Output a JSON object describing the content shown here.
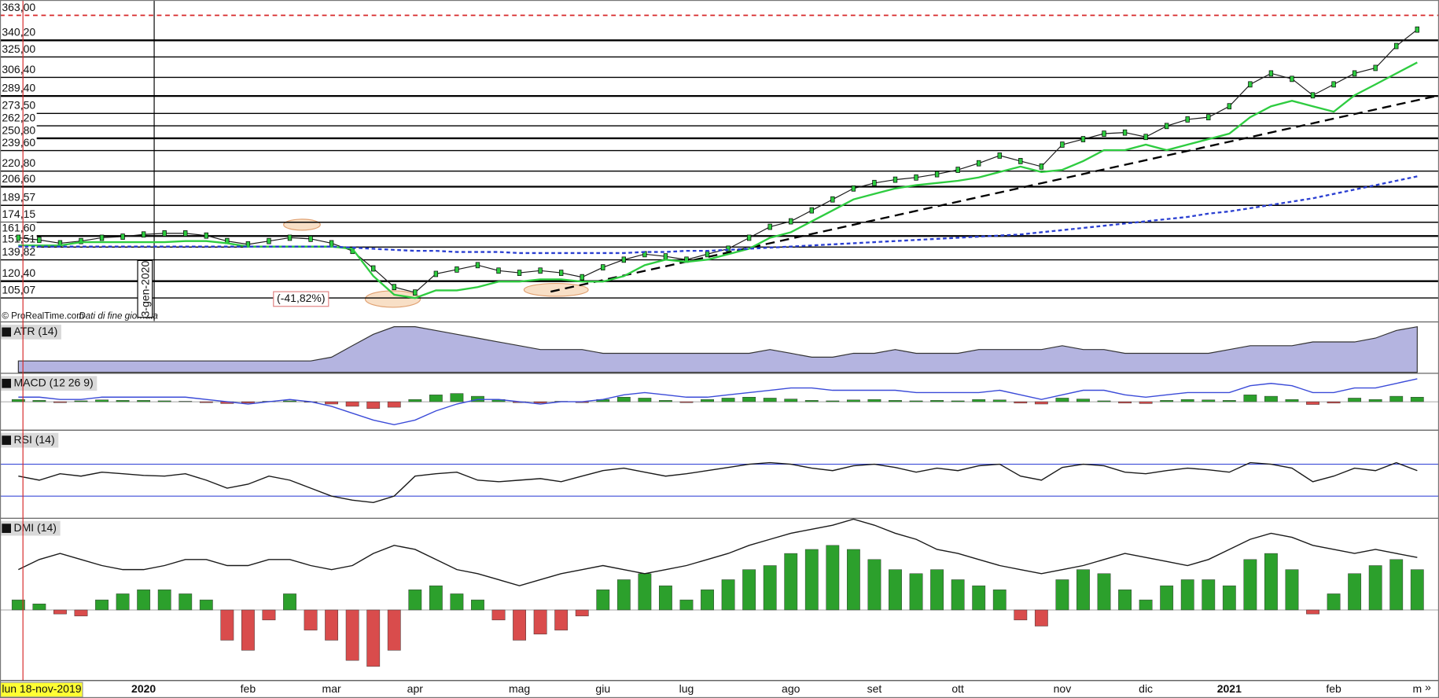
{
  "chart_data": [
    {
      "type": "price",
      "source": "© ProRealTime.com",
      "source_note": "Dati di fine giornata",
      "annotation": "(-41,82%)",
      "marker_label": "3-gen-2020",
      "cursor_label": "lun 18-nov-2019",
      "nav_button": "»",
      "categories": [
        null,
        null,
        null,
        null,
        null,
        null,
        "2020",
        null,
        null,
        null,
        null,
        "feb",
        null,
        null,
        null,
        "mar",
        null,
        null,
        null,
        "apr",
        null,
        null,
        null,
        null,
        "mag",
        null,
        null,
        null,
        "giu",
        null,
        null,
        null,
        "lug",
        null,
        null,
        null,
        null,
        "ago",
        null,
        null,
        null,
        "set",
        null,
        null,
        null,
        "ott",
        null,
        null,
        null,
        null,
        "nov",
        null,
        null,
        null,
        "dic",
        null,
        null,
        null,
        "2021",
        null,
        null,
        null,
        null,
        "feb",
        null,
        null,
        null,
        "m"
      ],
      "ylim": [
        84,
        377
      ],
      "yticks": [
        {
          "value": 363,
          "label": "363,00"
        },
        {
          "value": 340.2,
          "label": "340,20"
        },
        {
          "value": 325,
          "label": "325,00"
        },
        {
          "value": 306.4,
          "label": "306,40"
        },
        {
          "value": 289.4,
          "label": "289,40"
        },
        {
          "value": 273.5,
          "label": "273,50"
        },
        {
          "value": 262.2,
          "label": "262,20"
        },
        {
          "value": 250.8,
          "label": "250,80"
        },
        {
          "value": 239.6,
          "label": "239,60"
        },
        {
          "value": 220.8,
          "label": "220,80"
        },
        {
          "value": 206.6,
          "label": "206,60"
        },
        {
          "value": 189.57,
          "label": "189,57"
        },
        {
          "value": 174.15,
          "label": "174,15"
        },
        {
          "value": 161.6,
          "label": "161,60"
        },
        {
          "value": 151.51,
          "label": "151,51"
        },
        {
          "value": 139.82,
          "label": "139,82"
        },
        {
          "value": 120.4,
          "label": "120,40"
        },
        {
          "value": 105.07,
          "label": "105,07"
        }
      ],
      "series": [
        {
          "color": "#1a1a1a",
          "values": [
            160,
            158,
            155,
            157,
            160,
            161,
            163,
            164,
            164,
            162,
            157,
            154,
            157,
            160,
            159,
            155,
            148,
            132,
            115,
            110,
            127,
            131,
            135,
            130,
            128,
            130,
            128,
            124,
            133,
            140,
            145,
            143,
            140,
            145,
            150,
            160,
            170,
            175,
            185,
            195,
            205,
            210,
            213,
            215,
            218,
            222,
            228,
            235,
            230,
            225,
            245,
            250,
            255,
            256,
            252,
            262,
            268,
            270,
            280,
            300,
            310,
            305,
            290,
            300,
            310,
            315,
            335,
            350
          ]
        },
        {
          "color": "#2ecc40",
          "values": [
            153,
            153,
            153,
            156,
            156,
            156,
            156,
            156,
            157,
            157,
            155,
            152,
            152,
            152,
            152,
            152,
            150,
            125,
            108,
            105,
            112,
            112,
            115,
            120,
            120,
            122,
            122,
            120,
            120,
            125,
            135,
            140,
            138,
            140,
            145,
            150,
            160,
            165,
            175,
            185,
            195,
            200,
            205,
            208,
            210,
            212,
            215,
            220,
            225,
            220,
            222,
            230,
            240,
            240,
            245,
            240,
            245,
            250,
            255,
            270,
            280,
            285,
            280,
            275,
            290,
            300,
            310,
            320
          ]
        },
        {
          "color": "#2a3fd1",
          "dashed": true,
          "values": [
            152,
            152,
            152,
            152,
            152,
            152,
            152,
            152,
            152,
            152,
            152,
            152,
            152,
            152,
            152,
            152,
            151,
            150,
            149,
            148,
            148,
            147,
            147,
            147,
            146,
            146,
            146,
            146,
            146,
            146,
            147,
            147,
            148,
            148,
            149,
            150,
            151,
            152,
            153,
            154,
            155,
            156,
            157,
            158,
            159,
            160,
            161,
            162,
            163,
            165,
            167,
            169,
            171,
            173,
            175,
            177,
            179,
            182,
            184,
            187,
            190,
            193,
            196,
            200,
            204,
            208,
            212,
            216
          ]
        }
      ]
    },
    {
      "type": "area",
      "title": "ATR (14)",
      "color": "#b4b4e0",
      "ylim": [
        0,
        13
      ],
      "values": [
        3,
        3,
        3,
        3,
        3,
        3,
        3,
        3,
        3,
        3,
        3,
        3,
        3,
        3,
        3,
        4,
        7,
        10,
        12,
        12,
        11,
        10,
        9,
        8,
        7,
        6,
        6,
        6,
        5,
        5,
        5,
        5,
        5,
        5,
        5,
        5,
        6,
        5,
        4,
        4,
        5,
        5,
        6,
        5,
        5,
        5,
        6,
        6,
        6,
        6,
        7,
        6,
        6,
        5,
        5,
        5,
        5,
        5,
        6,
        7,
        7,
        7,
        8,
        8,
        8,
        9,
        11,
        12
      ]
    },
    {
      "type": "histogram",
      "title": "MACD (12 26 9)",
      "up_color": "#2ca02c",
      "down_color": "#d94c4c",
      "ylim": [
        -6,
        6
      ],
      "values": [
        0.5,
        0.3,
        -0.2,
        0.2,
        0.4,
        0.3,
        0.3,
        0.2,
        0.1,
        -0.2,
        -0.4,
        -0.3,
        0.1,
        0.2,
        -0.1,
        -0.5,
        -1,
        -1.5,
        -1.2,
        0.5,
        1.5,
        1.8,
        1.2,
        0.5,
        -0.2,
        -0.3,
        0.1,
        -0.2,
        0.5,
        1,
        0.8,
        0.3,
        -0.2,
        0.5,
        0.8,
        1,
        0.8,
        0.6,
        0.3,
        0.2,
        0.4,
        0.5,
        0.3,
        0.2,
        0.3,
        0.2,
        0.5,
        0.4,
        -0.3,
        -0.5,
        0.8,
        0.6,
        0.2,
        -0.3,
        -0.4,
        0.3,
        0.5,
        0.4,
        0.3,
        1.5,
        1.2,
        0.5,
        -0.6,
        -0.3,
        0.8,
        0.5,
        1.2,
        1
      ],
      "series": [
        {
          "color": "#3b4bd8",
          "values": [
            1,
            1,
            0.5,
            0.5,
            1,
            1,
            1,
            1,
            1,
            0.5,
            0,
            -0.5,
            0,
            0.5,
            0,
            -1,
            -2.5,
            -4,
            -5,
            -4,
            -2,
            -0.5,
            0.5,
            0.5,
            0,
            -0.5,
            0,
            0,
            0.5,
            1.5,
            2,
            1.5,
            1,
            1,
            1.5,
            2,
            2.5,
            3,
            3,
            2.5,
            2.5,
            2.5,
            2.5,
            2,
            2,
            2,
            2,
            2.5,
            1.5,
            0.5,
            1.5,
            2.5,
            2.5,
            1.5,
            1,
            1.5,
            2,
            2,
            2,
            3.5,
            4,
            3.5,
            2,
            2,
            3,
            3,
            4,
            5
          ]
        }
      ]
    },
    {
      "type": "line",
      "title": "RSI (14)",
      "ylim": [
        0,
        100
      ],
      "hlines": [
        70,
        30
      ],
      "hline_color": "#3b4bd8",
      "series": [
        {
          "color": "#1a1a1a",
          "values": [
            55,
            50,
            58,
            55,
            60,
            58,
            56,
            55,
            58,
            50,
            40,
            45,
            55,
            50,
            40,
            30,
            25,
            22,
            30,
            55,
            58,
            60,
            50,
            48,
            50,
            52,
            48,
            55,
            62,
            65,
            60,
            55,
            58,
            62,
            66,
            70,
            72,
            70,
            65,
            62,
            68,
            70,
            66,
            60,
            65,
            62,
            68,
            70,
            55,
            50,
            66,
            70,
            68,
            60,
            58,
            62,
            65,
            63,
            60,
            72,
            70,
            65,
            48,
            55,
            65,
            62,
            72,
            62
          ]
        }
      ]
    },
    {
      "type": "histogram",
      "title": "DMI (14)",
      "up_color": "#2ca02c",
      "down_color": "#d94c4c",
      "ylim": [
        -35,
        45
      ],
      "values": [
        5,
        3,
        -2,
        -3,
        5,
        8,
        10,
        10,
        8,
        5,
        -15,
        -20,
        -5,
        8,
        -10,
        -15,
        -25,
        -28,
        -20,
        10,
        12,
        8,
        5,
        -5,
        -15,
        -12,
        -10,
        -3,
        10,
        15,
        18,
        12,
        5,
        10,
        15,
        20,
        22,
        28,
        30,
        32,
        30,
        25,
        20,
        18,
        20,
        15,
        12,
        10,
        -5,
        -8,
        15,
        20,
        18,
        10,
        5,
        12,
        15,
        15,
        12,
        25,
        28,
        20,
        -2,
        8,
        18,
        22,
        25,
        20
      ],
      "series": [
        {
          "color": "#1a1a1a",
          "values": [
            20,
            25,
            28,
            25,
            22,
            20,
            20,
            22,
            25,
            25,
            22,
            22,
            25,
            25,
            22,
            20,
            22,
            28,
            32,
            30,
            25,
            20,
            18,
            15,
            12,
            15,
            18,
            20,
            22,
            20,
            18,
            20,
            22,
            25,
            28,
            32,
            35,
            38,
            40,
            42,
            45,
            42,
            38,
            35,
            30,
            28,
            25,
            22,
            20,
            18,
            20,
            22,
            25,
            28,
            26,
            24,
            22,
            25,
            30,
            35,
            38,
            36,
            32,
            30,
            28,
            30,
            28,
            26
          ]
        }
      ]
    }
  ]
}
